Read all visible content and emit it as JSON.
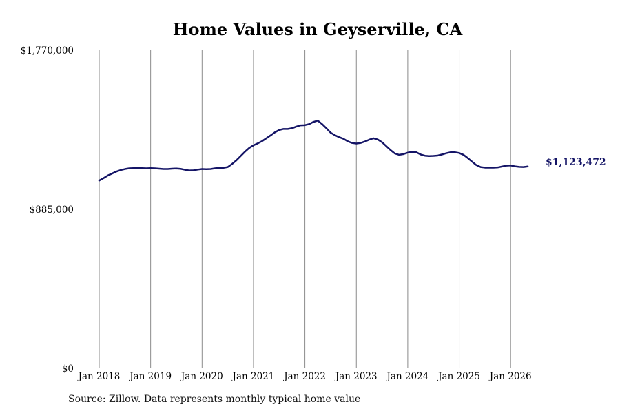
{
  "chart_data": {
    "type": "line",
    "title": "Home Values in Geyserville, CA",
    "source": "Source: Zillow. Data represents monthly typical home value",
    "y_ticks": [
      {
        "value": 0,
        "label": "$0"
      },
      {
        "value": 885000,
        "label": "$885,000"
      },
      {
        "value": 1770000,
        "label": "$1,770,000"
      }
    ],
    "ylim": [
      0,
      1770000
    ],
    "x_ticks": [
      "Jan 2018",
      "Jan 2019",
      "Jan 2020",
      "Jan 2021",
      "Jan 2022",
      "Jan 2023",
      "Jan 2024",
      "Jan 2025",
      "Jan 2026"
    ],
    "grid": "vertical",
    "line_color": "#141466",
    "end_label": "$1,123,472",
    "series": [
      {
        "points": [
          [
            "2018-01",
            1045000
          ],
          [
            "2018-02",
            1058000
          ],
          [
            "2018-03",
            1073000
          ],
          [
            "2018-04",
            1084000
          ],
          [
            "2018-05",
            1095000
          ],
          [
            "2018-06",
            1103000
          ],
          [
            "2018-07",
            1109000
          ],
          [
            "2018-08",
            1113000
          ],
          [
            "2018-09",
            1114000
          ],
          [
            "2018-10",
            1115000
          ],
          [
            "2018-11",
            1114000
          ],
          [
            "2018-12",
            1113000
          ],
          [
            "2019-01",
            1114000
          ],
          [
            "2019-02",
            1113000
          ],
          [
            "2019-03",
            1111000
          ],
          [
            "2019-04",
            1109000
          ],
          [
            "2019-05",
            1109000
          ],
          [
            "2019-06",
            1111000
          ],
          [
            "2019-07",
            1112000
          ],
          [
            "2019-08",
            1110000
          ],
          [
            "2019-09",
            1105000
          ],
          [
            "2019-10",
            1101000
          ],
          [
            "2019-11",
            1102000
          ],
          [
            "2019-12",
            1106000
          ],
          [
            "2020-01",
            1109000
          ],
          [
            "2020-02",
            1108000
          ],
          [
            "2020-03",
            1109000
          ],
          [
            "2020-04",
            1113000
          ],
          [
            "2020-05",
            1116000
          ],
          [
            "2020-06",
            1116000
          ],
          [
            "2020-07",
            1120000
          ],
          [
            "2020-08",
            1137000
          ],
          [
            "2020-09",
            1157000
          ],
          [
            "2020-10",
            1181000
          ],
          [
            "2020-11",
            1205000
          ],
          [
            "2020-12",
            1226000
          ],
          [
            "2021-01",
            1241000
          ],
          [
            "2021-02",
            1252000
          ],
          [
            "2021-03",
            1264000
          ],
          [
            "2021-04",
            1280000
          ],
          [
            "2021-05",
            1296000
          ],
          [
            "2021-06",
            1313000
          ],
          [
            "2021-07",
            1326000
          ],
          [
            "2021-08",
            1332000
          ],
          [
            "2021-09",
            1332000
          ],
          [
            "2021-10",
            1336000
          ],
          [
            "2021-11",
            1345000
          ],
          [
            "2021-12",
            1352000
          ],
          [
            "2022-01",
            1353000
          ],
          [
            "2022-02",
            1359000
          ],
          [
            "2022-03",
            1371000
          ],
          [
            "2022-04",
            1378000
          ],
          [
            "2022-05",
            1359000
          ],
          [
            "2022-06",
            1336000
          ],
          [
            "2022-07",
            1311000
          ],
          [
            "2022-08",
            1297000
          ],
          [
            "2022-09",
            1286000
          ],
          [
            "2022-10",
            1277000
          ],
          [
            "2022-11",
            1263000
          ],
          [
            "2022-12",
            1254000
          ],
          [
            "2023-01",
            1251000
          ],
          [
            "2023-02",
            1254000
          ],
          [
            "2023-03",
            1262000
          ],
          [
            "2023-04",
            1272000
          ],
          [
            "2023-05",
            1280000
          ],
          [
            "2023-06",
            1273000
          ],
          [
            "2023-07",
            1258000
          ],
          [
            "2023-08",
            1236000
          ],
          [
            "2023-09",
            1214000
          ],
          [
            "2023-10",
            1195000
          ],
          [
            "2023-11",
            1188000
          ],
          [
            "2023-12",
            1192000
          ],
          [
            "2024-01",
            1200000
          ],
          [
            "2024-02",
            1204000
          ],
          [
            "2024-03",
            1202000
          ],
          [
            "2024-04",
            1190000
          ],
          [
            "2024-05",
            1183000
          ],
          [
            "2024-06",
            1181000
          ],
          [
            "2024-07",
            1182000
          ],
          [
            "2024-08",
            1184000
          ],
          [
            "2024-09",
            1190000
          ],
          [
            "2024-10",
            1197000
          ],
          [
            "2024-11",
            1202000
          ],
          [
            "2024-12",
            1202000
          ],
          [
            "2025-01",
            1198000
          ],
          [
            "2025-02",
            1188000
          ],
          [
            "2025-03",
            1170000
          ],
          [
            "2025-04",
            1150000
          ],
          [
            "2025-05",
            1131000
          ],
          [
            "2025-06",
            1120000
          ],
          [
            "2025-07",
            1117000
          ],
          [
            "2025-08",
            1117000
          ],
          [
            "2025-09",
            1117000
          ],
          [
            "2025-10",
            1118000
          ],
          [
            "2025-11",
            1123000
          ],
          [
            "2025-12",
            1128000
          ],
          [
            "2026-01",
            1129000
          ],
          [
            "2026-02",
            1124000
          ],
          [
            "2026-03",
            1121000
          ],
          [
            "2026-04",
            1120000
          ],
          [
            "2026-05",
            1123472
          ]
        ]
      }
    ]
  }
}
